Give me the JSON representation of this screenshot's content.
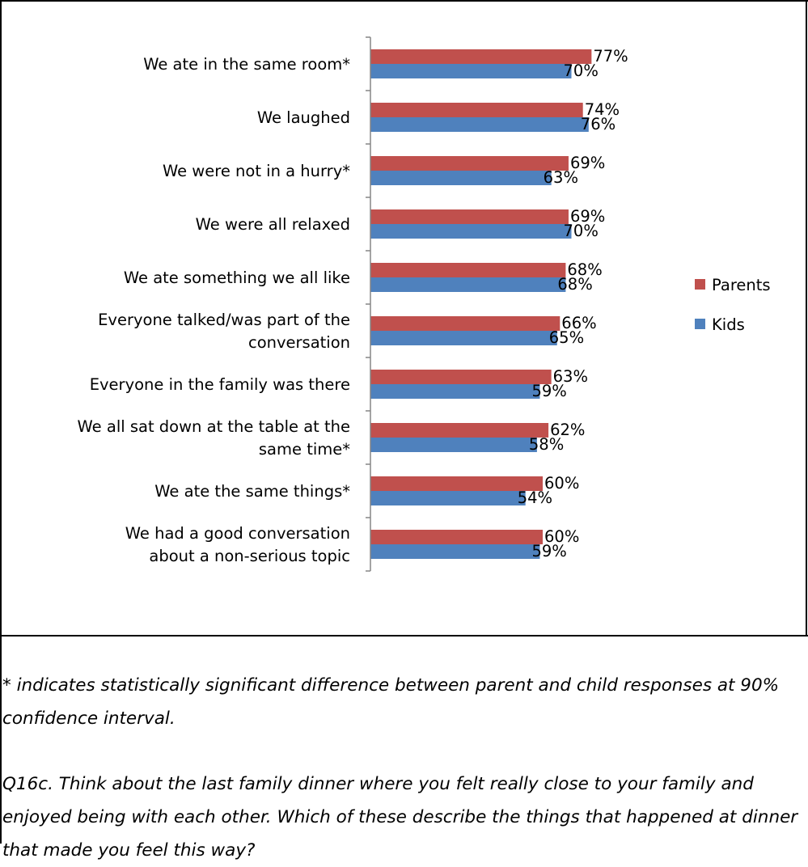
{
  "chart_data": {
    "type": "bar",
    "orientation": "horizontal",
    "categories": [
      [
        "We ate in the same room*"
      ],
      [
        "We laughed"
      ],
      [
        "We were not in a hurry*"
      ],
      [
        "We were all relaxed"
      ],
      [
        "We ate something we all like"
      ],
      [
        "Everyone talked/was part of the",
        "conversation"
      ],
      [
        "Everyone in the family was there"
      ],
      [
        "We all sat down at the table at the",
        "same time*"
      ],
      [
        "We ate the same things*"
      ],
      [
        "We had a good conversation",
        "about a non-serious topic"
      ]
    ],
    "series": [
      {
        "name": "Parents",
        "color": "#c0504d",
        "values": [
          77,
          74,
          69,
          69,
          68,
          66,
          63,
          62,
          60,
          60
        ],
        "labels": [
          "77%",
          "74%",
          "69%",
          "69%",
          "68%",
          "66%",
          "63%",
          "62%",
          "60%",
          "60%"
        ]
      },
      {
        "name": "Kids",
        "color": "#4f81bd",
        "values": [
          70,
          76,
          63,
          70,
          68,
          65,
          59,
          58,
          54,
          59
        ],
        "labels": [
          "70%",
          "76%",
          "63%",
          "70%",
          "68%",
          "65%",
          "59%",
          "58%",
          "54%",
          "59%"
        ]
      }
    ],
    "legend_position": "right",
    "grid": false
  },
  "notes": {
    "footnote": "* indicates statistically significant difference between parent and child responses at 90% confidence interval.",
    "question": "Q16c.  Think about the last family dinner where you felt really close to your family and enjoyed being with each other.  Which of these describe the things that happened at dinner that made you feel this way?"
  }
}
